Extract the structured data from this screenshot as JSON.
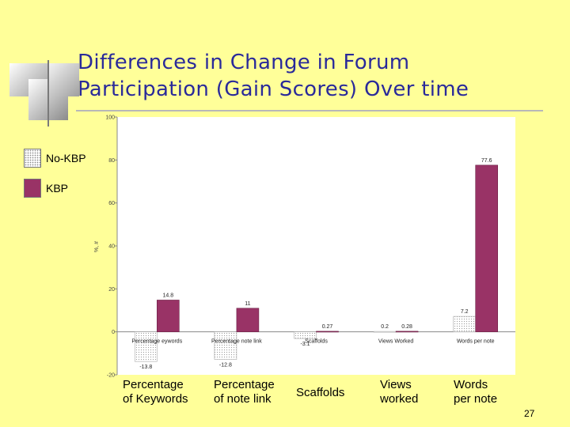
{
  "slide": {
    "title_line1": "Differences in Change in Forum",
    "title_line2": "Participation (Gain Scores)  Over time",
    "page_number": "27",
    "background": "#ffff99",
    "title_color": "#2a2a9a"
  },
  "legend": [
    {
      "label": "No-KBP",
      "color": "#ffffff",
      "pattern": "dotted"
    },
    {
      "label": "KBP",
      "color": "#993366",
      "pattern": "solid"
    }
  ],
  "category_labels": [
    "Percentage\nof Keywords",
    "Percentage\nof note link",
    "Scaffolds",
    "Views\nworked",
    "Words\nper note"
  ],
  "chart_data": {
    "type": "bar",
    "categories": [
      "Percentage eywords",
      "Percentage note link",
      "Scaffolds",
      "Views Worked",
      "Words per note"
    ],
    "ylabel": "%, #",
    "ylim": [
      -20,
      100
    ],
    "yticks": [
      -20,
      0,
      20,
      40,
      60,
      80,
      100
    ],
    "grid": false,
    "legend_position": "left",
    "series": [
      {
        "name": "No-KBP",
        "color": "#ffffff",
        "values": [
          -13.8,
          -12.8,
          -3.1,
          0.2,
          7.2
        ],
        "labels": [
          "-13.8",
          "-12.8",
          "-3.1",
          "0.2",
          "7.2"
        ]
      },
      {
        "name": "KBP",
        "color": "#993366",
        "values": [
          14.8,
          11,
          0.27,
          0.28,
          77.6
        ],
        "labels": [
          "14.8",
          "11",
          "0.27",
          "0.28",
          "77.6"
        ]
      }
    ]
  }
}
